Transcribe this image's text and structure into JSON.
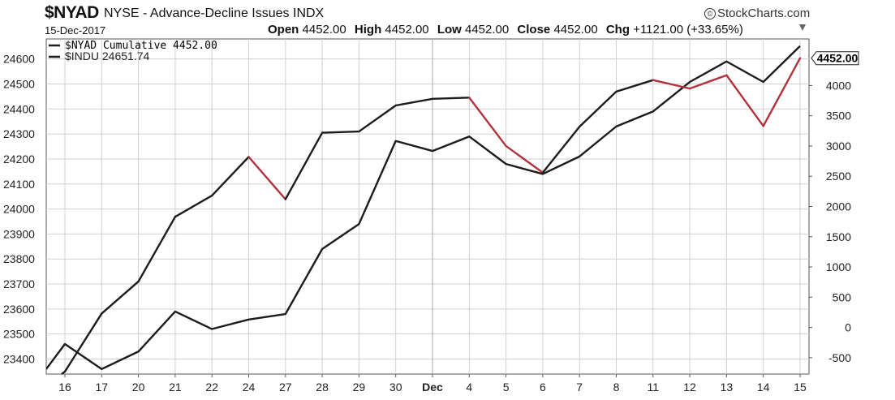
{
  "header": {
    "symbol": "$NYAD",
    "description": "NYSE - Advance-Decline Issues INDX",
    "date": "15-Dec-2017",
    "open_label": "Open",
    "open": "4452.00",
    "high_label": "High",
    "high": "4452.00",
    "low_label": "Low",
    "low": "4452.00",
    "close_label": "Close",
    "close": "4452.00",
    "chg_label": "Chg",
    "chg": "+1121.00 (+33.65%)",
    "brand": "StockCharts.com",
    "brand_mark": "©"
  },
  "chart_data": {
    "type": "line",
    "categories": [
      "16",
      "17",
      "20",
      "21",
      "22",
      "24",
      "27",
      "28",
      "29",
      "30",
      "Dec",
      "4",
      "5",
      "6",
      "7",
      "8",
      "11",
      "12",
      "13",
      "14",
      "15"
    ],
    "legend": [
      {
        "label": "$NYAD Cumulative 4452.00"
      },
      {
        "label": "$INDU 24651.74"
      }
    ],
    "series": [
      {
        "name": "$NYAD Cumulative",
        "axis": "right",
        "values": [
          -730,
          230,
          760,
          1830,
          2180,
          2820,
          2120,
          3220,
          3240,
          3670,
          3780,
          3800,
          3000,
          2560,
          3320,
          3900,
          4090,
          3950,
          4170,
          3330,
          4452
        ],
        "down_segments": [
          5,
          11,
          12,
          16,
          17,
          18,
          19
        ]
      },
      {
        "name": "$INDU",
        "axis": "left",
        "values": [
          23460,
          23360,
          23430,
          23590,
          23520,
          23558,
          23580,
          23840,
          23940,
          24272,
          24232,
          24290,
          24180,
          24140,
          24210,
          24330,
          24390,
          24508,
          24590,
          24508,
          24651.74
        ]
      }
    ],
    "left_axis": {
      "ticks": [
        23400,
        23500,
        23600,
        23700,
        23800,
        23900,
        24000,
        24100,
        24200,
        24300,
        24400,
        24500,
        24600
      ],
      "range": [
        23340,
        24680
      ]
    },
    "right_axis": {
      "ticks": [
        -500,
        0,
        500,
        1000,
        1500,
        2000,
        2500,
        3000,
        3500,
        4000
      ],
      "range": [
        -770,
        4770
      ]
    },
    "last_value_label": "4452.00",
    "colors": {
      "line": "#1c1c1c",
      "down": "#b1323c",
      "grid": "#d0d0d0",
      "frame": "#555555"
    },
    "grid": true
  }
}
